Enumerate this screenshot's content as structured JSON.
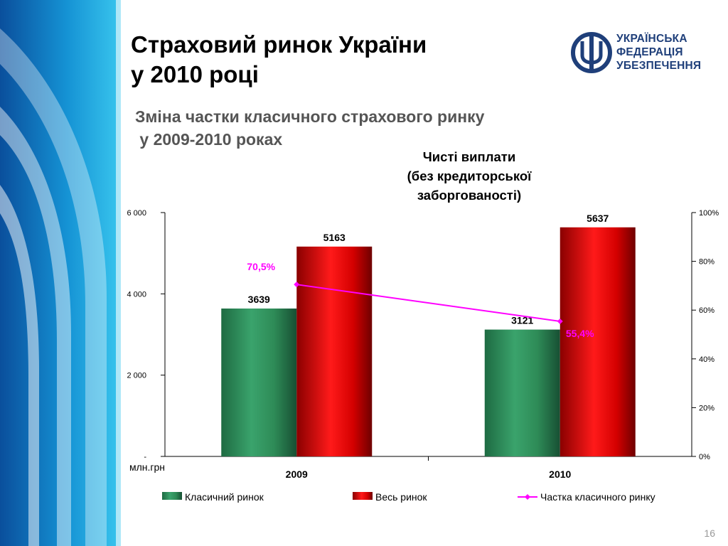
{
  "slide": {
    "title_lines": [
      "Страховий ринок України",
      "у 2010 році"
    ],
    "subtitle_lines": [
      "Зміна частки класичного страхового ринку",
      " у 2009-2010 роках"
    ],
    "logo_lines": [
      "УКРАЇНСЬКА",
      "ФЕДЕРАЦІЯ",
      "УБЕЗПЕЧЕННЯ"
    ],
    "page_number": "16"
  },
  "colors": {
    "classic": "#2e8b57",
    "total": "#dd0000",
    "share_line": "#ff00ff",
    "logo": "#1f3f7a",
    "decor_dark": "#0a5fa8",
    "decor_light": "#1ab0e0"
  },
  "chart_data": {
    "type": "bar",
    "title_lines": [
      "Чисті виплати",
      "(без кредиторської",
      "заборгованості)"
    ],
    "categories": [
      "2009",
      "2010"
    ],
    "unit_label": "млн.грн",
    "series": [
      {
        "name": "Класичний ринок",
        "values": [
          3639,
          3121
        ],
        "labels": [
          "3639",
          "3121"
        ],
        "axis": "left"
      },
      {
        "name": "Весь ринок",
        "values": [
          5163,
          5637
        ],
        "labels": [
          "5163",
          "5637"
        ],
        "axis": "left"
      },
      {
        "name": "Частка класичного ринку",
        "type": "line",
        "values": [
          70.5,
          55.4
        ],
        "labels": [
          "70,5%",
          "55,4%"
        ],
        "axis": "right"
      }
    ],
    "y_left": {
      "min": 0,
      "max": 6000,
      "ticks": [
        0,
        2000,
        4000,
        6000
      ],
      "tick_labels": [
        "-",
        "2 000",
        "4 000",
        "6 000"
      ]
    },
    "y_right": {
      "min": 0,
      "max": 100,
      "ticks": [
        0,
        20,
        40,
        60,
        80,
        100
      ],
      "tick_labels": [
        "0%",
        "20%",
        "40%",
        "60%",
        "80%",
        "100%"
      ]
    },
    "grid": false,
    "legend_position": "bottom"
  }
}
